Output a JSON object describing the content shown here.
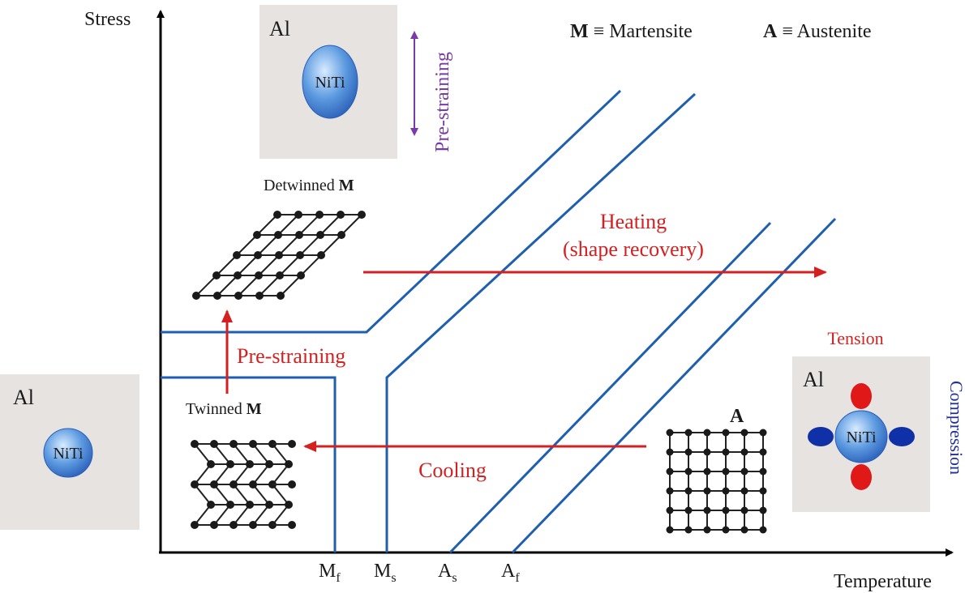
{
  "axes": {
    "y_label": "Stress",
    "x_label": "Temperature",
    "ticks": [
      {
        "main": "M",
        "sub": "f"
      },
      {
        "main": "M",
        "sub": "s"
      },
      {
        "main": "A",
        "sub": "s"
      },
      {
        "main": "A",
        "sub": "f"
      }
    ]
  },
  "legend": {
    "m_symbol": "M",
    "m_text": "≡ Martensite",
    "a_symbol": "A",
    "a_text": "≡ Austenite"
  },
  "specimens": {
    "top": {
      "matrix": "Al",
      "inclusion": "NiTi",
      "arrow_label": "Pre-straining"
    },
    "left": {
      "matrix": "Al",
      "inclusion": "NiTi"
    },
    "right": {
      "matrix": "Al",
      "inclusion": "NiTi",
      "tension_label": "Tension",
      "compression_label": "Compression"
    }
  },
  "structures": {
    "detwinned": {
      "label": "Detwinned",
      "symbol": "M"
    },
    "twinned": {
      "label": "Twinned",
      "symbol": "M"
    },
    "austenite": {
      "symbol": "A"
    }
  },
  "process_labels": {
    "heating_line1": "Heating",
    "heating_line2": "(shape recovery)",
    "prestraining": "Pre-straining",
    "cooling": "Cooling"
  },
  "colors": {
    "transformation_lines": "#1f5fb0",
    "process_arrows": "#d42020",
    "prestrain_arrow": "#7a3aa8",
    "box_fill": "#e6e3e0",
    "tension_lobes": "#e01818",
    "compression_lobes": "#1030a8"
  }
}
